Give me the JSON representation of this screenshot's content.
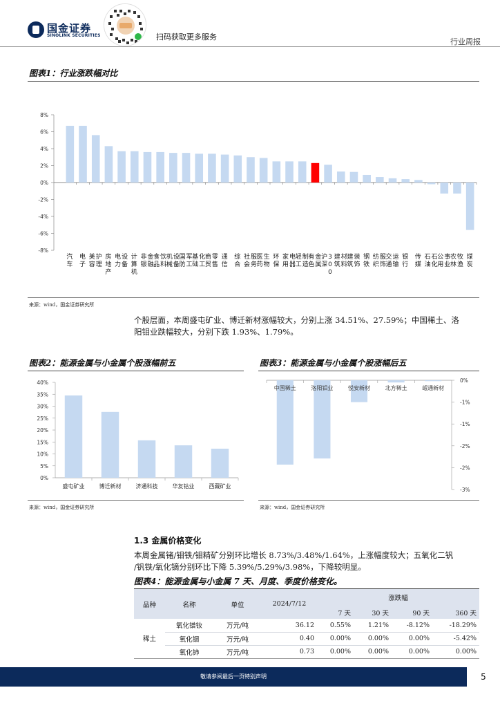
{
  "header": {
    "brand_cn": "国金证券",
    "brand_en": "SINOLINK SECURITIES",
    "scan_text": "扫码获取更多服务",
    "report_type": "行业周报"
  },
  "figure1": {
    "title": "图表1：行业涨跌幅对比",
    "source": "来源：wind，国金证券研究所"
  },
  "paragraph1": "个股层面，本周盛屯矿业、博迁新材涨幅较大，分别上涨 34.51%、27.59%；中国稀土、洛阳钼业跌幅较大，分别下跌 1.93%、1.79%。",
  "paragraph1_lines": [
    "个股层面，本周盛屯矿业、博迁新材涨幅较大，分别上涨 34.51%、27.59%；中国稀土、洛",
    "阳钼业跌幅较大，分别下跌 1.93%、1.79%。"
  ],
  "figure2": {
    "title": "图表2：能源金属与小金属个股涨幅前五",
    "source": "来源：wind，国金证券研究所"
  },
  "figure3": {
    "title": "图表3：能源金属与小金属个股涨幅后五",
    "source": "来源：wind，国金证券研究所"
  },
  "section": {
    "heading": "1.3 金属价格变化",
    "text_lines": [
      "本周金属锗/钼铁/钼精矿分别环比增长 8.73%/3.48%/1.64%，上涨幅度较大；五氧化二钒",
      "/钒铁/氧化镝分别环比下降 5.39%/5.29%/3.98%，下降较明显。"
    ]
  },
  "figure4": {
    "title": "图表4：能源金属与小金属 7 天、月度、季度价格变化。",
    "headers": {
      "variety": "品种",
      "name": "名称",
      "unit": "单位",
      "date": "2024/7/12",
      "change": "涨跌幅",
      "d7": "7 天",
      "d30": "30 天",
      "d90": "90 天",
      "d360": "360 天"
    },
    "group_label": "稀土",
    "rows": [
      {
        "name": "氧化镨钕",
        "unit": "万元/吨",
        "price": "36.12",
        "d7": "0.55%",
        "d30": "1.21%",
        "d90": "-8.12%",
        "d360": "-18.29%"
      },
      {
        "name": "氧化铟",
        "unit": "万元/吨",
        "price": "0.40",
        "d7": "0.00%",
        "d30": "0.00%",
        "d90": "0.00%",
        "d360": "-5.42%"
      },
      {
        "name": "氧化铈",
        "unit": "万元/吨",
        "price": "0.73",
        "d7": "0.00%",
        "d30": "0.00%",
        "d90": "0.00%",
        "d360": "0.00%"
      }
    ]
  },
  "footer": {
    "disclaimer": "敬请参阅最后一页特别声明",
    "page_number": "5"
  },
  "chart_data": [
    {
      "type": "bar",
      "title": "图表1：行业涨跌幅对比",
      "categories": [
        "汽车",
        "电子",
        "美容护理",
        "房地产",
        "电力设备",
        "计算机",
        "非银金融",
        "食品饮料",
        "机械设备",
        "国防军工",
        "基础化工",
        "商贸零售",
        "通信",
        "综合",
        "社会服务",
        "医药生物",
        "环保",
        "家用电器",
        "轻工制造",
        "有色金属",
        "沪深300",
        "建筑材料",
        "建筑装饰",
        "钢铁",
        "纺织服饰",
        "交通运输",
        "银行",
        "传媒",
        "石油石化",
        "公用事业",
        "农林牧渔",
        "煤炭"
      ],
      "values": [
        6.7,
        6.7,
        5.6,
        4.3,
        3.7,
        3.7,
        3.6,
        3.6,
        3.5,
        3.5,
        3.4,
        3.4,
        3.3,
        3.2,
        3.0,
        2.9,
        2.5,
        2.5,
        2.5,
        2.3,
        2.1,
        1.3,
        1.25,
        0.9,
        0.65,
        0.5,
        0.4,
        0.3,
        -0.2,
        -1.3,
        -1.3,
        -5.6
      ],
      "highlight_index": 19,
      "highlight_color": "#ff0000",
      "bar_color": "#c5d9f1",
      "yticks": [
        "8%",
        "6%",
        "4%",
        "2%",
        "0%",
        "-2%",
        "-4%",
        "-6%",
        "-8%"
      ],
      "ylim": [
        -8,
        8
      ]
    },
    {
      "type": "bar",
      "title": "图表2：能源金属与小金属个股涨幅前五",
      "categories": [
        "盛屯矿业",
        "博迁新材",
        "济通科技",
        "华友钴业",
        "西藏矿业"
      ],
      "values": [
        34.51,
        27.59,
        15.7,
        13.6,
        12.2
      ],
      "bar_color": "#c5d9f1",
      "yticks": [
        "40%",
        "35%",
        "30%",
        "25%",
        "20%",
        "15%",
        "10%",
        "5%",
        "0%"
      ],
      "ylim": [
        0,
        40
      ]
    },
    {
      "type": "bar",
      "title": "图表3：能源金属与小金属个股涨幅后五",
      "categories": [
        "中国稀土",
        "洛阳钼业",
        "悦安新材",
        "北方稀土",
        "岷通新材"
      ],
      "values": [
        -1.93,
        -1.79,
        -0.5,
        -0.05,
        -0.02
      ],
      "bar_color": "#c5d9f1",
      "yticks": [
        "0%",
        "-1%",
        "-1%",
        "-2%",
        "-2%",
        "-3%"
      ],
      "ylim": [
        -2.5,
        0
      ]
    }
  ]
}
